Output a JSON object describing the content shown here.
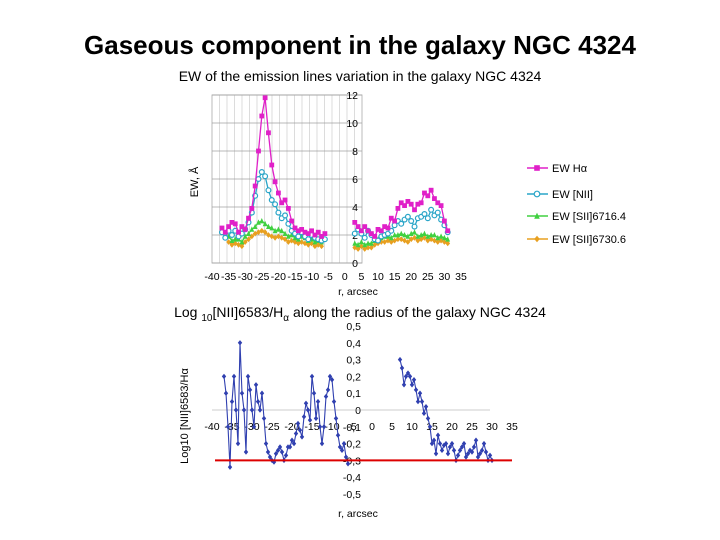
{
  "slide_title": "Gaseous component in the galaxy NGC 4324",
  "chart_data": [
    {
      "type": "line",
      "title": "EW of the emission lines variation in the galaxy NGC 4324",
      "xlabel": "r, arcsec",
      "ylabel": "EW, Å",
      "xticks": [
        "-40",
        "-35",
        "-30",
        "-25",
        "-20",
        "-15",
        "-10",
        "-5",
        "0",
        "5",
        "10",
        "15",
        "20",
        "25",
        "30",
        "35"
      ],
      "yticks": [
        "0",
        "2",
        "4",
        "6",
        "8",
        "10",
        "12"
      ],
      "xlim": [
        -40,
        35
      ],
      "ylim": [
        0,
        12
      ],
      "grid": true,
      "legend_position": "right",
      "series": [
        {
          "name": "EW Hα",
          "color": "#e020c8",
          "marker": "square",
          "x": [
            -37,
            -36,
            -35,
            -34,
            -33,
            -32,
            -31,
            -30,
            -29,
            -28,
            -27,
            -26,
            -25,
            -24,
            -23,
            -22,
            -21,
            -20,
            -19,
            -18,
            -17,
            -16,
            -15,
            -14,
            -13,
            -12,
            -11,
            -10,
            -9,
            -8,
            -7,
            -6,
            3,
            4,
            5,
            6,
            7,
            8,
            9,
            10,
            11,
            12,
            13,
            14,
            15,
            16,
            17,
            18,
            19,
            20,
            21,
            22,
            23,
            24,
            25,
            26,
            27,
            28,
            29,
            30,
            31
          ],
          "y": [
            2.5,
            2.2,
            2.6,
            2.9,
            2.8,
            2.2,
            2.6,
            2.4,
            3.2,
            3.9,
            5.5,
            8.0,
            10.5,
            11.8,
            9.3,
            7.0,
            5.8,
            5.0,
            4.3,
            4.5,
            3.9,
            3.0,
            2.5,
            2.3,
            2.4,
            2.2,
            2.1,
            2.3,
            2.0,
            2.2,
            1.9,
            2.1,
            2.9,
            2.6,
            2.3,
            2.6,
            2.3,
            2.1,
            1.9,
            2.4,
            2.3,
            2.6,
            2.5,
            3.2,
            3.0,
            3.9,
            4.3,
            4.1,
            4.4,
            4.2,
            3.8,
            4.2,
            4.3,
            5.0,
            4.8,
            5.2,
            4.6,
            4.3,
            4.1,
            3.0,
            2.3
          ]
        },
        {
          "name": "EW [NII]",
          "color": "#2aa5c8",
          "marker": "circle",
          "x": [
            -37,
            -36,
            -35,
            -34,
            -33,
            -32,
            -31,
            -30,
            -29,
            -28,
            -27,
            -26,
            -25,
            -24,
            -23,
            -22,
            -21,
            -20,
            -19,
            -18,
            -17,
            -16,
            -15,
            -14,
            -13,
            -12,
            -11,
            -10,
            -9,
            -8,
            -7,
            -6,
            3,
            4,
            5,
            6,
            7,
            8,
            9,
            10,
            11,
            12,
            13,
            14,
            15,
            16,
            17,
            18,
            19,
            20,
            21,
            22,
            23,
            24,
            25,
            26,
            27,
            28,
            29,
            30,
            31
          ],
          "y": [
            2.2,
            1.8,
            2.3,
            2.0,
            2.3,
            1.9,
            2.1,
            2.4,
            2.9,
            3.6,
            4.8,
            6.0,
            6.5,
            6.2,
            5.2,
            4.5,
            4.2,
            3.6,
            3.2,
            3.4,
            2.8,
            2.3,
            2.1,
            1.9,
            2.2,
            1.9,
            1.7,
            2.0,
            1.8,
            1.7,
            1.6,
            1.7,
            2.1,
            2.4,
            2.1,
            1.8,
            2.3,
            2.0,
            1.7,
            1.6,
            1.9,
            2.0,
            2.1,
            2.3,
            2.7,
            3.0,
            2.8,
            3.1,
            3.3,
            3.0,
            2.6,
            3.2,
            3.3,
            3.5,
            3.2,
            3.8,
            3.4,
            3.6,
            3.1,
            2.7,
            2.2
          ]
        },
        {
          "name": "EW [SII]6716.4",
          "color": "#40d040",
          "marker": "triangle",
          "x": [
            -35,
            -34,
            -33,
            -32,
            -31,
            -30,
            -29,
            -28,
            -27,
            -26,
            -25,
            -24,
            -23,
            -22,
            -21,
            -20,
            -19,
            -18,
            -17,
            -16,
            -15,
            -14,
            -13,
            -12,
            -11,
            -10,
            -9,
            -8,
            -7,
            3,
            4,
            5,
            6,
            7,
            8,
            9,
            10,
            11,
            12,
            13,
            14,
            15,
            16,
            17,
            18,
            19,
            20,
            21,
            22,
            23,
            24,
            25,
            26,
            27,
            28,
            29,
            30,
            31
          ],
          "y": [
            1.9,
            1.6,
            1.7,
            1.7,
            1.5,
            1.9,
            2.1,
            2.4,
            2.6,
            2.9,
            3.0,
            2.8,
            2.6,
            2.5,
            2.3,
            2.4,
            2.3,
            2.1,
            1.9,
            2.0,
            1.8,
            1.7,
            1.9,
            1.8,
            1.6,
            1.7,
            1.5,
            1.6,
            1.5,
            1.4,
            1.3,
            1.5,
            1.3,
            1.4,
            1.4,
            1.6,
            1.7,
            1.8,
            1.9,
            1.9,
            1.8,
            2.0,
            2.0,
            2.1,
            2.0,
            1.9,
            2.1,
            2.2,
            1.9,
            2.0,
            2.1,
            1.9,
            2.0,
            2.0,
            1.8,
            1.9,
            1.8,
            1.7
          ]
        },
        {
          "name": "EW [SII]6730.6",
          "color": "#e8a020",
          "marker": "diamond",
          "x": [
            -35,
            -34,
            -33,
            -32,
            -31,
            -30,
            -29,
            -28,
            -27,
            -26,
            -25,
            -24,
            -23,
            -22,
            -21,
            -20,
            -19,
            -18,
            -17,
            -16,
            -15,
            -14,
            -13,
            -12,
            -11,
            -10,
            -9,
            -8,
            -7,
            3,
            4,
            5,
            6,
            7,
            8,
            9,
            10,
            11,
            12,
            13,
            14,
            15,
            16,
            17,
            18,
            19,
            20,
            21,
            22,
            23,
            24,
            25,
            26,
            27,
            28,
            29,
            30,
            31
          ],
          "y": [
            1.5,
            1.3,
            1.4,
            1.3,
            1.2,
            1.5,
            1.7,
            1.9,
            2.1,
            2.2,
            2.3,
            2.2,
            2.0,
            1.9,
            1.8,
            1.9,
            1.8,
            1.7,
            1.5,
            1.6,
            1.5,
            1.4,
            1.5,
            1.4,
            1.3,
            1.4,
            1.2,
            1.3,
            1.2,
            1.1,
            1.0,
            1.2,
            1.0,
            1.1,
            1.1,
            1.3,
            1.4,
            1.5,
            1.5,
            1.6,
            1.5,
            1.6,
            1.7,
            1.7,
            1.6,
            1.5,
            1.7,
            1.8,
            1.6,
            1.7,
            1.8,
            1.6,
            1.7,
            1.6,
            1.5,
            1.6,
            1.5,
            1.4
          ]
        }
      ]
    },
    {
      "type": "line",
      "title_main": "Log ",
      "title_sub": "10",
      "title_rest": "[NII]6583/H",
      "title_alpha": "α",
      "title_tail": " along the radius of the galaxy NGC 4324",
      "xlabel": "r, arcsec",
      "ylabel": "Log10 [NII]6583/Hα",
      "xticks": [
        "-40",
        "-35",
        "-30",
        "-25",
        "-20",
        "-15",
        "-10",
        "-5",
        "0",
        "5",
        "10",
        "15",
        "20",
        "25",
        "30",
        "35"
      ],
      "yticks": [
        "0,5",
        "0,4",
        "0,3",
        "0,2",
        "0,1",
        "0",
        "-0,1",
        "-0,2",
        "-0,3",
        "-0,4",
        "-0,5"
      ],
      "xlim": [
        -40,
        35
      ],
      "ylim": [
        -0.5,
        0.5
      ],
      "grid": false,
      "reference_line": {
        "y": -0.3,
        "color": "#dd0000"
      },
      "series": [
        {
          "name": "",
          "color": "#3040b0",
          "marker": "diamond",
          "segments": [
            {
              "x": [
                -37,
                -36.5,
                -36,
                -35.5,
                -35,
                -34.5,
                -34,
                -33.5,
                -33,
                -32.5,
                -32,
                -31.5,
                -31,
                -30.5,
                -30,
                -29.5,
                -29,
                -28.5,
                -28,
                -27.5,
                -27,
                -26.5,
                -26,
                -25.5,
                -25,
                -24.5,
                -24,
                -23.5,
                -23,
                -22.5,
                -22,
                -21.5,
                -21,
                -20.5,
                -20,
                -19.5,
                -19,
                -18.5,
                -18,
                -17.5,
                -17,
                -16.5,
                -16,
                -15.5,
                -15,
                -14.5,
                -14,
                -13.5,
                -13,
                -12.5,
                -12,
                -11.5,
                -11,
                -10.5,
                -10,
                -9.5,
                -9,
                -8.5,
                -8,
                -7.5,
                -7,
                -6.5,
                -6
              ],
              "y": [
                0.2,
                0.1,
                -0.1,
                -0.34,
                0.05,
                0.2,
                0.0,
                -0.2,
                0.4,
                0.1,
                0.0,
                -0.25,
                0.2,
                0.12,
                0.0,
                -0.1,
                0.15,
                0.05,
                0.0,
                0.1,
                -0.05,
                -0.2,
                -0.25,
                -0.28,
                -0.3,
                -0.31,
                -0.26,
                -0.24,
                -0.22,
                -0.25,
                -0.3,
                -0.27,
                -0.22,
                -0.22,
                -0.18,
                -0.2,
                -0.14,
                -0.08,
                -0.12,
                -0.16,
                -0.04,
                0.04,
                0.0,
                -0.06,
                0.2,
                0.1,
                -0.05,
                0.05,
                -0.1,
                -0.2,
                -0.1,
                0.08,
                0.12,
                0.2,
                0.18,
                0.05,
                -0.05,
                -0.15,
                -0.22,
                -0.24,
                -0.2,
                -0.28,
                -0.32
              ]
            },
            {
              "x": [
                7,
                7.5,
                8,
                8.5,
                9,
                9.5,
                10,
                10.5,
                11,
                11.5,
                12,
                12.5,
                13,
                13.5,
                14,
                14.5,
                15,
                15.5,
                16,
                16.5,
                17,
                17.5,
                18,
                18.5,
                19,
                19.5,
                20,
                20.5,
                21,
                21.5,
                22,
                22.5,
                23,
                23.5,
                24,
                24.5,
                25,
                25.5,
                26,
                26.5,
                27,
                27.5,
                28,
                28.5,
                29,
                29.5,
                30
              ],
              "y": [
                0.3,
                0.25,
                0.15,
                0.2,
                0.22,
                0.2,
                0.15,
                0.18,
                0.12,
                0.05,
                0.1,
                0.05,
                -0.02,
                0.02,
                -0.05,
                -0.1,
                -0.2,
                -0.18,
                -0.26,
                -0.15,
                -0.2,
                -0.24,
                -0.21,
                -0.2,
                -0.26,
                -0.22,
                -0.2,
                -0.24,
                -0.3,
                -0.27,
                -0.24,
                -0.22,
                -0.2,
                -0.28,
                -0.26,
                -0.24,
                -0.25,
                -0.22,
                -0.18,
                -0.28,
                -0.26,
                -0.24,
                -0.2,
                -0.25,
                -0.3,
                -0.27,
                -0.3
              ]
            }
          ]
        }
      ]
    }
  ]
}
